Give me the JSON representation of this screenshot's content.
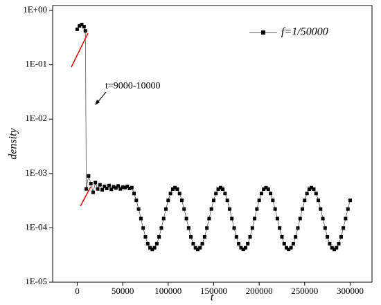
{
  "chart_data": {
    "type": "scatter",
    "xlabel": "t",
    "ylabel": "density",
    "annotation": "t=9000-10000",
    "xlim": [
      -27000,
      324000
    ],
    "xticks": [
      0,
      50000,
      100000,
      150000,
      200000,
      250000,
      300000
    ],
    "ylim": [
      1e-05,
      1.23
    ],
    "log_y": true,
    "yticks": [
      {
        "value": 1e-05,
        "label": "1E-05"
      },
      {
        "value": 0.0001,
        "label": "1E-04"
      },
      {
        "value": 0.001,
        "label": "1E-03"
      },
      {
        "value": 0.01,
        "label": "1E-02"
      },
      {
        "value": 0.1,
        "label": "1E-01"
      },
      {
        "value": 1,
        "label": "1E+00"
      }
    ],
    "legend": "upper right",
    "series": [
      {
        "name": "f=1/50000",
        "color": "#000000",
        "x": [
          0,
          2500,
          5000,
          7500,
          9000,
          10000,
          12500,
          15000,
          17500,
          20000,
          22500,
          25000,
          27500,
          30000,
          32500,
          35000,
          37500,
          40000,
          42500,
          45000,
          47500,
          50000,
          52500,
          55000,
          57500,
          60000,
          62500,
          65000,
          67500,
          70000,
          72500,
          75000,
          77500,
          80000,
          82500,
          85000,
          87500,
          90000,
          92500,
          95000,
          97500,
          100000,
          102500,
          105000,
          107500,
          110000,
          112500,
          115000,
          117500,
          120000,
          122500,
          125000,
          127500,
          130000,
          132500,
          135000,
          137500,
          140000,
          142500,
          145000,
          147500,
          150000,
          152500,
          155000,
          157500,
          160000,
          162500,
          165000,
          167500,
          170000,
          172500,
          175000,
          177500,
          180000,
          182500,
          185000,
          187500,
          190000,
          192500,
          195000,
          197500,
          200000,
          202500,
          205000,
          207500,
          210000,
          212500,
          215000,
          217500,
          220000,
          222500,
          225000,
          227500,
          230000,
          232500,
          235000,
          237500,
          240000,
          242500,
          245000,
          247500,
          250000,
          252500,
          255000,
          257500,
          260000,
          262500,
          265000,
          267500,
          270000,
          272500,
          275000,
          277500,
          280000,
          282500,
          285000,
          287500,
          290000,
          292500,
          295000,
          297500,
          300000
        ],
        "values": [
          0.45,
          0.52,
          0.55,
          0.5,
          0.42,
          0.00052,
          0.0009,
          0.00065,
          0.00045,
          0.00068,
          0.00052,
          0.00062,
          0.0005,
          0.00058,
          0.00053,
          0.0006,
          0.00051,
          0.00057,
          0.00054,
          0.00059,
          0.00052,
          0.00056,
          0.00055,
          0.00058,
          0.00053,
          0.00055,
          0.000428,
          0.00032,
          0.000222,
          0.000148,
          9.9e-05,
          6.8e-05,
          5.1e-05,
          4.3e-05,
          4e-05,
          4.3e-05,
          5.1e-05,
          6.8e-05,
          9.9e-05,
          0.000148,
          0.000222,
          0.00032,
          0.000428,
          0.000515,
          0.00055,
          0.000515,
          0.000428,
          0.00032,
          0.000222,
          0.000148,
          9.9e-05,
          6.8e-05,
          5.1e-05,
          4.3e-05,
          4e-05,
          4.3e-05,
          5.1e-05,
          6.8e-05,
          9.9e-05,
          0.000148,
          0.000222,
          0.00032,
          0.000428,
          0.000515,
          0.00055,
          0.000515,
          0.000428,
          0.00032,
          0.000222,
          0.000148,
          9.9e-05,
          6.8e-05,
          5.1e-05,
          4.3e-05,
          4e-05,
          4.3e-05,
          5.1e-05,
          6.8e-05,
          9.9e-05,
          0.000148,
          0.000222,
          0.00032,
          0.000428,
          0.000515,
          0.00055,
          0.000515,
          0.000428,
          0.00032,
          0.000222,
          0.000148,
          9.9e-05,
          6.8e-05,
          5.1e-05,
          4.3e-05,
          4e-05,
          4.3e-05,
          5.1e-05,
          6.8e-05,
          9.9e-05,
          0.000148,
          0.000222,
          0.00032,
          0.000428,
          0.000515,
          0.00055,
          0.000515,
          0.000428,
          0.00032,
          0.000222,
          0.000148,
          9.9e-05,
          6.8e-05,
          5.1e-05,
          4.3e-05,
          4e-05,
          4.3e-05,
          5.1e-05,
          6.8e-05,
          9.9e-05,
          0.000148,
          0.000222,
          0.00032
        ]
      }
    ]
  }
}
